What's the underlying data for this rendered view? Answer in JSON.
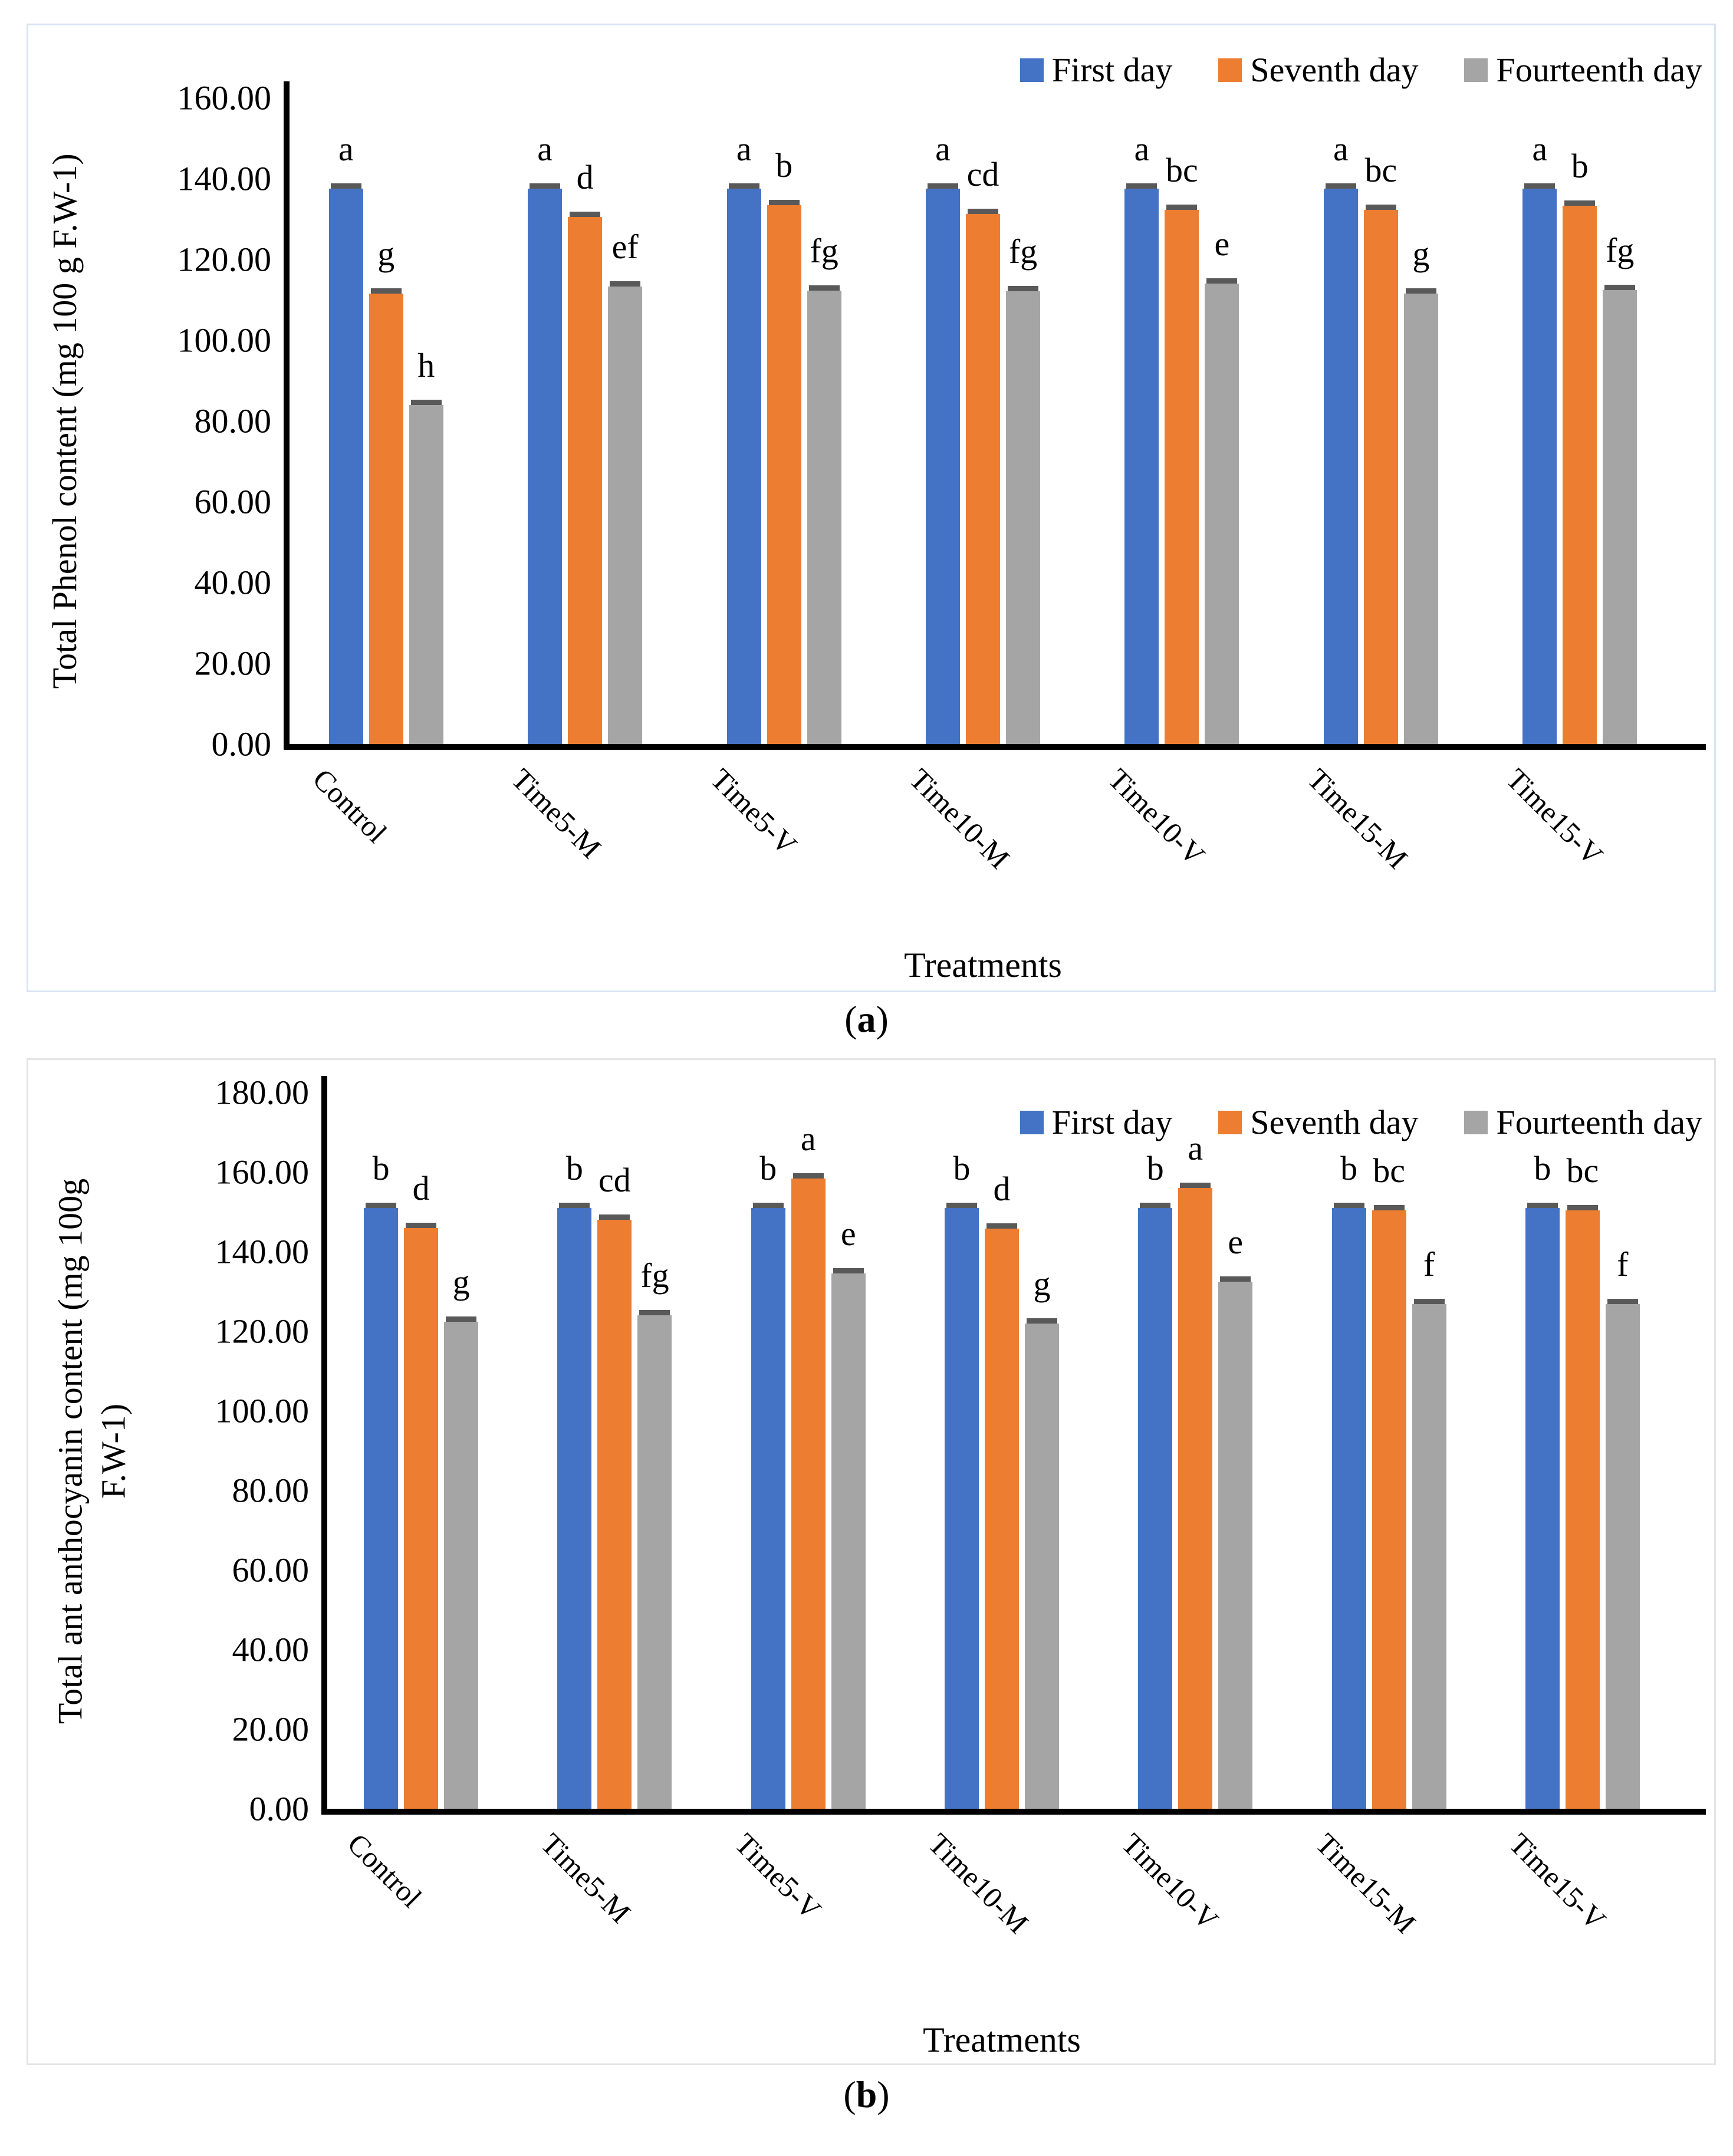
{
  "figure": {
    "caption_a": {
      "prefix": "(",
      "letter": "a",
      "suffix": ")"
    },
    "caption_b": {
      "prefix": "(",
      "letter": "b",
      "suffix": ")"
    }
  },
  "colors": {
    "first_day": "#4472C4",
    "seventh_day": "#ED7D31",
    "fourteenth_day": "#A5A5A5",
    "error_cap": "#595959",
    "axis": "#000000",
    "panel_a_border": "#d8e4f3",
    "panel_b_border": "#e4e4e4"
  },
  "chart_data": [
    {
      "id": "a",
      "type": "bar",
      "title": "",
      "ylabel_lines": [
        "Total Phenol content (mg 100 g F.W-1)"
      ],
      "xlabel": "Treatments",
      "ylim": [
        0,
        160
      ],
      "ytick_step": 20,
      "ytick_decimals": 2,
      "grid": false,
      "error_caps": true,
      "legend_position": "top-right-inside",
      "categories": [
        "Control",
        "Time5-M",
        "Time5-V",
        "Time10-M",
        "Time10-V",
        "Time15-M",
        "Time15-V"
      ],
      "series": [
        {
          "name": "First day",
          "color": "#4472C4",
          "values": [
            137.5,
            137.5,
            137.5,
            137.5,
            137.5,
            137.5,
            137.5
          ],
          "letters": [
            "a",
            "a",
            "a",
            "a",
            "a",
            "a",
            "a"
          ]
        },
        {
          "name": "Seventh day",
          "color": "#ED7D31",
          "values": [
            111.5,
            130.5,
            133.5,
            131.3,
            132.2,
            132.2,
            133.3
          ],
          "letters": [
            "g",
            "d",
            "b",
            "cd",
            "bc",
            "bc",
            "b"
          ]
        },
        {
          "name": "Fourteenth day",
          "color": "#A5A5A5",
          "values": [
            84.0,
            113.3,
            112.2,
            112.1,
            114.0,
            111.6,
            112.4
          ],
          "letters": [
            "h",
            "ef",
            "fg",
            "fg",
            "e",
            "g",
            "fg"
          ]
        }
      ]
    },
    {
      "id": "b",
      "type": "bar",
      "title": "",
      "ylabel_lines": [
        "Total ant anthocyanin content (mg 100g",
        "F.W-1)"
      ],
      "xlabel": "Treatments",
      "ylim": [
        0,
        180
      ],
      "ytick_step": 20,
      "ytick_decimals": 2,
      "grid": false,
      "error_caps": true,
      "legend_position": "top-right-inside",
      "categories": [
        "Control",
        "Time5-M",
        "Time5-V",
        "Time10-M",
        "Time10-V",
        "Time15-M",
        "Time15-V"
      ],
      "series": [
        {
          "name": "First day",
          "color": "#4472C4",
          "values": [
            151.0,
            151.0,
            151.0,
            151.0,
            151.0,
            151.0,
            151.0
          ],
          "letters": [
            "b",
            "b",
            "b",
            "b",
            "b",
            "b",
            "b"
          ]
        },
        {
          "name": "Seventh day",
          "color": "#ED7D31",
          "values": [
            146.0,
            148.0,
            158.3,
            145.8,
            156.0,
            150.3,
            150.3
          ],
          "letters": [
            "d",
            "cd",
            "a",
            "d",
            "a",
            "bc",
            "bc"
          ]
        },
        {
          "name": "Fourteenth day",
          "color": "#A5A5A5",
          "values": [
            122.3,
            124.0,
            134.5,
            122.0,
            132.4,
            126.8,
            126.8
          ],
          "letters": [
            "g",
            "fg",
            "e",
            "g",
            "e",
            "f",
            "f"
          ]
        }
      ]
    }
  ]
}
